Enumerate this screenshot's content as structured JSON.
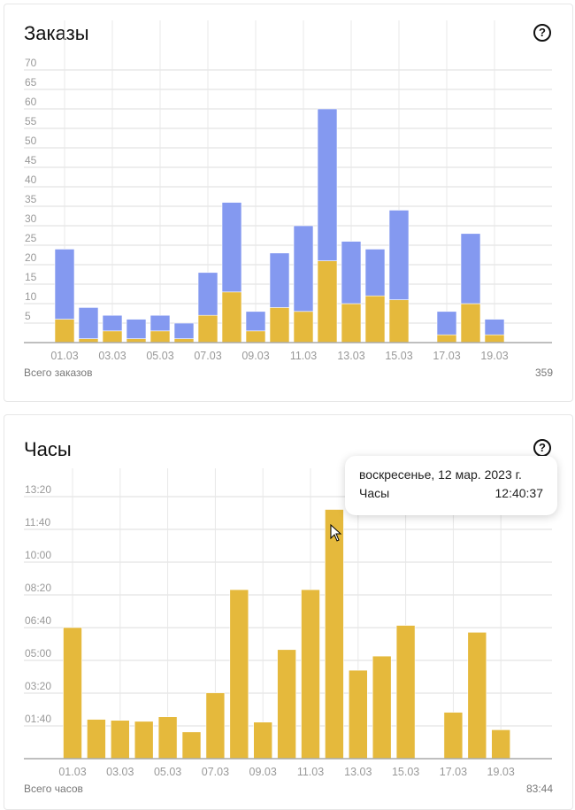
{
  "orders": {
    "title": "Заказы",
    "total_label": "Всего заказов",
    "total_value": "359"
  },
  "hours": {
    "title": "Часы",
    "total_label": "Всего часов",
    "total_value": "83:44"
  },
  "help_glyph": "?",
  "tooltip": {
    "date": "воскресенье, 12 мар. 2023 г.",
    "label": "Часы",
    "value": "12:40:37"
  },
  "colors": {
    "blue": "#8499f0",
    "yellow": "#e5b93c"
  },
  "chart_data": [
    {
      "type": "bar",
      "stacked": true,
      "title": "Заказы",
      "categories": [
        "01.03",
        "02.03",
        "03.03",
        "04.03",
        "05.03",
        "06.03",
        "07.03",
        "08.03",
        "09.03",
        "10.03",
        "11.03",
        "12.03",
        "13.03",
        "14.03",
        "15.03",
        "16.03",
        "17.03",
        "18.03",
        "19.03"
      ],
      "tick_labels": [
        "01.03",
        "03.03",
        "05.03",
        "07.03",
        "09.03",
        "11.03",
        "13.03",
        "15.03",
        "17.03",
        "19.03"
      ],
      "series": [
        {
          "name": "yellow",
          "values": [
            6,
            1,
            3,
            1,
            3,
            1,
            7,
            13,
            3,
            9,
            8,
            21,
            10,
            12,
            11,
            0,
            2,
            10,
            2
          ]
        },
        {
          "name": "blue",
          "values": [
            18,
            8,
            4,
            5,
            4,
            4,
            11,
            23,
            5,
            14,
            22,
            39,
            16,
            12,
            23,
            0,
            6,
            18,
            4
          ]
        }
      ],
      "totals": [
        24,
        9,
        7,
        6,
        7,
        5,
        18,
        36,
        8,
        23,
        30,
        60,
        26,
        24,
        34,
        0,
        8,
        28,
        6
      ],
      "ylim": [
        0,
        70
      ],
      "yticks": [
        5,
        10,
        15,
        20,
        25,
        30,
        35,
        40,
        45,
        50,
        55,
        60,
        65,
        70
      ],
      "grid": true
    },
    {
      "type": "bar",
      "title": "Часы",
      "categories": [
        "01.03",
        "02.03",
        "03.03",
        "04.03",
        "05.03",
        "06.03",
        "07.03",
        "08.03",
        "09.03",
        "10.03",
        "11.03",
        "12.03",
        "13.03",
        "14.03",
        "15.03",
        "16.03",
        "17.03",
        "18.03",
        "19.03"
      ],
      "tick_labels": [
        "01.03",
        "03.03",
        "05.03",
        "07.03",
        "09.03",
        "11.03",
        "13.03",
        "15.03",
        "17.03",
        "19.03"
      ],
      "values_hours": [
        6.67,
        2.0,
        1.95,
        1.9,
        2.13,
        1.36,
        3.35,
        8.6,
        1.86,
        5.55,
        8.6,
        12.68,
        4.5,
        5.22,
        6.78,
        0,
        2.36,
        6.43,
        1.47
      ],
      "ylim_hours": [
        0,
        14.4
      ],
      "yticks": [
        "01:40",
        "03:20",
        "05:00",
        "06:40",
        "08:20",
        "10:00",
        "11:40",
        "13:20"
      ],
      "ytick_values_hours": [
        1.6667,
        3.3333,
        5,
        6.6667,
        8.3333,
        10,
        11.6667,
        13.3333
      ],
      "grid": true
    }
  ]
}
